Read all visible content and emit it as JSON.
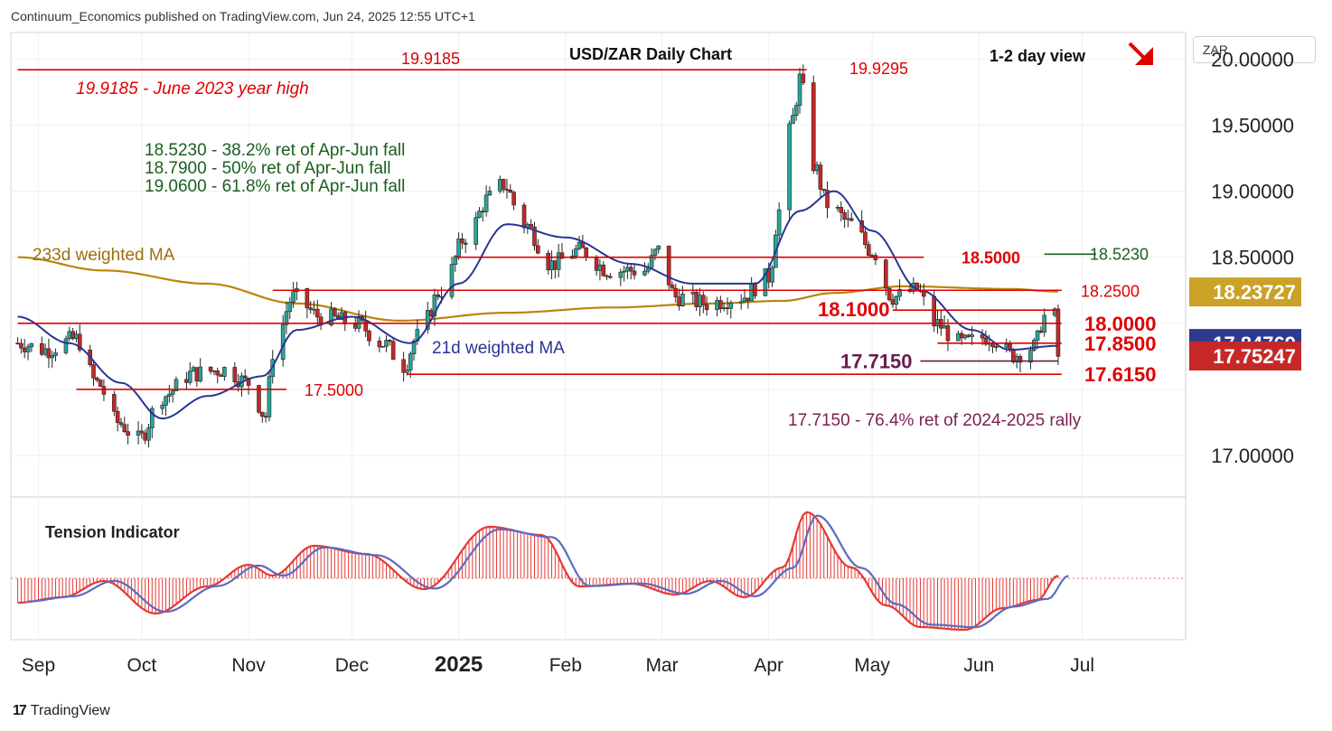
{
  "header": {
    "published": "Continuum_Economics published on TradingView.com, Jun 24, 2025 12:55 UTC+1"
  },
  "footer": {
    "brand": "TradingView",
    "logo_glyph": "17"
  },
  "currency_selector": "ZAR",
  "colors": {
    "up": "#26a69a",
    "down": "#c62828",
    "level": "#e00000",
    "ma21": "#283593",
    "ma233": "#b8860b",
    "fib_text": "#1b5e20",
    "ret_text": "#7b1f4f",
    "tension_red": "#e53935",
    "tension_blue": "#5c6bc0"
  },
  "chart_data": {
    "type": "candlestick",
    "title": "USD/ZAR Daily Chart",
    "view": "1-2 day view",
    "view_direction": "down",
    "ylim": [
      16.7,
      20.2
    ],
    "y_ticks": [
      "20.00000",
      "19.50000",
      "19.00000",
      "18.50000",
      "17.00000"
    ],
    "x_labels": [
      "Sep",
      "Oct",
      "Nov",
      "Dec",
      "2025",
      "Feb",
      "Mar",
      "Apr",
      "May",
      "Jun",
      "Jul"
    ],
    "x_label_dates": [
      "2024-09-01",
      "2024-10-01",
      "2024-11-01",
      "2024-12-01",
      "2025-01-01",
      "2025-02-01",
      "2025-03-01",
      "2025-04-01",
      "2025-05-01",
      "2025-06-01",
      "2025-07-01"
    ],
    "date_range": [
      "2024-08-24",
      "2025-07-31"
    ],
    "ohlc_anchors": [
      [
        "2024-08-26",
        17.85
      ],
      [
        "2024-09-03",
        17.8
      ],
      [
        "2024-09-12",
        17.88
      ],
      [
        "2024-09-18",
        17.55
      ],
      [
        "2024-09-24",
        17.25
      ],
      [
        "2024-09-30",
        17.12
      ],
      [
        "2024-10-07",
        17.45
      ],
      [
        "2024-10-16",
        17.62
      ],
      [
        "2024-10-25",
        17.65
      ],
      [
        "2024-11-01",
        17.55
      ],
      [
        "2024-11-06",
        17.3
      ],
      [
        "2024-11-08",
        17.78
      ],
      [
        "2024-11-14",
        18.2
      ],
      [
        "2024-11-22",
        18.05
      ],
      [
        "2024-12-02",
        18.0
      ],
      [
        "2024-12-10",
        17.85
      ],
      [
        "2024-12-16",
        17.68
      ],
      [
        "2024-12-20",
        17.9
      ],
      [
        "2024-12-27",
        18.25
      ],
      [
        "2025-01-03",
        18.65
      ],
      [
        "2025-01-10",
        18.95
      ],
      [
        "2025-01-14",
        19.05
      ],
      [
        "2025-01-20",
        18.75
      ],
      [
        "2025-01-28",
        18.45
      ],
      [
        "2025-02-05",
        18.55
      ],
      [
        "2025-02-14",
        18.4
      ],
      [
        "2025-02-24",
        18.4
      ],
      [
        "2025-02-28",
        18.55
      ],
      [
        "2025-03-05",
        18.2
      ],
      [
        "2025-03-14",
        18.15
      ],
      [
        "2025-03-24",
        18.2
      ],
      [
        "2025-04-01",
        18.35
      ],
      [
        "2025-04-04",
        18.85
      ],
      [
        "2025-04-08",
        19.55
      ],
      [
        "2025-04-10",
        19.85
      ],
      [
        "2025-04-14",
        19.2
      ],
      [
        "2025-04-18",
        18.9
      ],
      [
        "2025-04-25",
        18.75
      ],
      [
        "2025-05-01",
        18.55
      ],
      [
        "2025-05-07",
        18.2
      ],
      [
        "2025-05-14",
        18.25
      ],
      [
        "2025-05-19",
        18.0
      ],
      [
        "2025-05-27",
        17.85
      ],
      [
        "2025-06-04",
        17.9
      ],
      [
        "2025-06-11",
        17.76
      ],
      [
        "2025-06-17",
        17.82
      ],
      [
        "2025-06-20",
        18.05
      ],
      [
        "2025-06-23",
        18.05
      ],
      [
        "2025-06-24",
        17.75
      ]
    ],
    "ma21_anchors": [
      [
        "2024-08-26",
        18.05
      ],
      [
        "2024-09-10",
        17.85
      ],
      [
        "2024-09-25",
        17.55
      ],
      [
        "2024-10-07",
        17.28
      ],
      [
        "2024-10-20",
        17.45
      ],
      [
        "2024-11-05",
        17.6
      ],
      [
        "2024-11-15",
        17.95
      ],
      [
        "2024-12-01",
        18.05
      ],
      [
        "2024-12-18",
        17.85
      ],
      [
        "2025-01-01",
        18.3
      ],
      [
        "2025-01-15",
        18.75
      ],
      [
        "2025-02-01",
        18.65
      ],
      [
        "2025-02-20",
        18.45
      ],
      [
        "2025-03-10",
        18.3
      ],
      [
        "2025-03-28",
        18.3
      ],
      [
        "2025-04-10",
        18.85
      ],
      [
        "2025-04-20",
        19.0
      ],
      [
        "2025-05-01",
        18.7
      ],
      [
        "2025-05-15",
        18.25
      ],
      [
        "2025-05-30",
        17.95
      ],
      [
        "2025-06-10",
        17.8
      ],
      [
        "2025-06-24",
        17.83
      ]
    ],
    "ma233_anchors": [
      [
        "2024-08-26",
        18.5
      ],
      [
        "2024-09-20",
        18.4
      ],
      [
        "2024-10-20",
        18.3
      ],
      [
        "2024-11-15",
        18.15
      ],
      [
        "2024-12-15",
        18.02
      ],
      [
        "2025-01-15",
        18.08
      ],
      [
        "2025-02-15",
        18.12
      ],
      [
        "2025-03-15",
        18.15
      ],
      [
        "2025-04-05",
        18.17
      ],
      [
        "2025-04-20",
        18.23
      ],
      [
        "2025-05-10",
        18.28
      ],
      [
        "2025-06-10",
        18.26
      ],
      [
        "2025-06-24",
        18.24
      ]
    ],
    "horizontal_levels": [
      {
        "value": 19.9185,
        "label": "19.9185",
        "from": "2024-08-26",
        "to": "2025-04-12"
      },
      {
        "value": 18.5,
        "label": "18.5000",
        "from": "2024-12-31",
        "to": "2025-05-16"
      },
      {
        "value": 18.25,
        "label": "18.2500",
        "from": "2024-11-08",
        "to": "2025-06-25"
      },
      {
        "value": 18.1,
        "label": "18.1000",
        "from": "2025-05-07",
        "to": "2025-06-24"
      },
      {
        "value": 18.0,
        "label": "18.0000",
        "from": "2024-08-26",
        "to": "2025-06-25"
      },
      {
        "value": 17.85,
        "label": "17.8500",
        "from": "2025-05-20",
        "to": "2025-06-25"
      },
      {
        "value": 17.715,
        "label": "17.7150",
        "from": "2025-05-15",
        "to": "2025-06-24"
      },
      {
        "value": 17.615,
        "label": "17.6150",
        "from": "2024-12-17",
        "to": "2025-06-25"
      },
      {
        "value": 17.5,
        "label": "17.5000",
        "from": "2024-09-12",
        "to": "2024-11-12"
      },
      {
        "value": 18.523,
        "label": "18.5230",
        "from": "2025-06-20",
        "to": "2025-07-05"
      }
    ],
    "peak_label": {
      "value": 19.9295,
      "label": "19.9295"
    },
    "annotations": {
      "year_high": "19.9185 - June 2023 year high",
      "fib1": "18.5230 - 38.2% ret of Apr-Jun fall",
      "fib2": "18.7900 - 50% ret of Apr-Jun fall",
      "fib3": "19.0600 - 61.8% ret of Apr-Jun fall",
      "ma233": "233d weighted MA",
      "ma21": "21d weighted MA",
      "retrace": "17.7150 - 76.4% ret of 2024-2025 rally",
      "tension": "Tension Indicator"
    },
    "price_tags": [
      {
        "value": 18.23727,
        "label": "18.23727",
        "color": "#c9a227"
      },
      {
        "value": 17.84769,
        "label": "17.84769",
        "color": "#2f3a8f"
      },
      {
        "value": 17.75247,
        "label": "17.75247",
        "color": "#c62828"
      }
    ],
    "tension_anchors": [
      [
        "2024-08-26",
        -0.45
      ],
      [
        "2024-09-08",
        -0.35
      ],
      [
        "2024-09-20",
        -0.05
      ],
      [
        "2024-10-05",
        -0.65
      ],
      [
        "2024-10-20",
        -0.15
      ],
      [
        "2024-11-01",
        0.25
      ],
      [
        "2024-11-08",
        0.05
      ],
      [
        "2024-11-20",
        0.6
      ],
      [
        "2024-12-05",
        0.45
      ],
      [
        "2024-12-22",
        -0.2
      ],
      [
        "2025-01-10",
        0.95
      ],
      [
        "2025-01-25",
        0.8
      ],
      [
        "2025-02-05",
        -0.15
      ],
      [
        "2025-02-20",
        -0.1
      ],
      [
        "2025-03-05",
        -0.3
      ],
      [
        "2025-03-15",
        -0.05
      ],
      [
        "2025-03-25",
        -0.35
      ],
      [
        "2025-04-05",
        0.2
      ],
      [
        "2025-04-12",
        1.22
      ],
      [
        "2025-04-25",
        0.2
      ],
      [
        "2025-05-05",
        -0.5
      ],
      [
        "2025-05-15",
        -0.9
      ],
      [
        "2025-05-28",
        -0.95
      ],
      [
        "2025-06-08",
        -0.55
      ],
      [
        "2025-06-18",
        -0.4
      ],
      [
        "2025-06-24",
        0.05
      ]
    ]
  }
}
